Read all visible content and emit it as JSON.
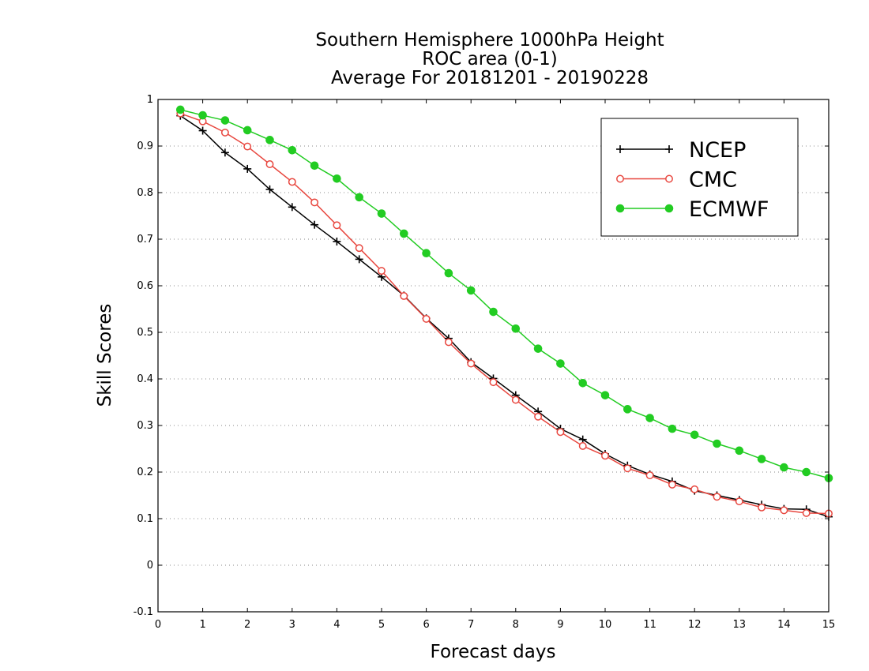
{
  "chart_data": {
    "type": "line",
    "title_lines": [
      "Southern Hemisphere 1000hPa Height",
      "ROC area (0-1)",
      "Average For 20181201 - 20190228"
    ],
    "xlabel": "Forecast days",
    "ylabel": "Skill Scores",
    "xlim": [
      0,
      15
    ],
    "ylim": [
      -0.1,
      1
    ],
    "xticks": [
      "0",
      "1",
      "2",
      "3",
      "4",
      "5",
      "6",
      "7",
      "8",
      "9",
      "10",
      "11",
      "12",
      "13",
      "14",
      "15"
    ],
    "yticks": [
      "-0.1",
      "0",
      "0.1",
      "0.2",
      "0.3",
      "0.4",
      "0.5",
      "0.6",
      "0.7",
      "0.8",
      "0.9",
      "1"
    ],
    "grid": "horizontal dotted",
    "legend_position": "top-right",
    "x": [
      0.5,
      1,
      1.5,
      2,
      2.5,
      3,
      3.5,
      4,
      4.5,
      5,
      5.5,
      6,
      6.5,
      7,
      7.5,
      8,
      8.5,
      9,
      9.5,
      10,
      10.5,
      11,
      11.5,
      12,
      12.5,
      13,
      13.5,
      14,
      14.5,
      15
    ],
    "series": [
      {
        "name": "NCEP",
        "color": "#000000",
        "marker": "plus",
        "values": [
          0.965,
          0.933,
          0.886,
          0.851,
          0.807,
          0.769,
          0.731,
          0.695,
          0.657,
          0.619,
          0.579,
          0.53,
          0.487,
          0.436,
          0.401,
          0.365,
          0.33,
          0.293,
          0.27,
          0.239,
          0.214,
          0.195,
          0.18,
          0.16,
          0.15,
          0.14,
          0.13,
          0.121,
          0.12,
          0.104
        ]
      },
      {
        "name": "CMC",
        "color": "#e8473f",
        "marker": "open-circle",
        "values": [
          0.97,
          0.953,
          0.929,
          0.899,
          0.861,
          0.823,
          0.779,
          0.73,
          0.681,
          0.632,
          0.578,
          0.529,
          0.479,
          0.433,
          0.393,
          0.355,
          0.319,
          0.286,
          0.256,
          0.235,
          0.208,
          0.193,
          0.173,
          0.163,
          0.147,
          0.137,
          0.124,
          0.118,
          0.112,
          0.111
        ]
      },
      {
        "name": "ECMWF",
        "color": "#22cc22",
        "marker": "filled-circle",
        "values": [
          0.978,
          0.966,
          0.955,
          0.934,
          0.913,
          0.891,
          0.858,
          0.83,
          0.79,
          0.755,
          0.712,
          0.67,
          0.627,
          0.59,
          0.544,
          0.508,
          0.465,
          0.433,
          0.391,
          0.365,
          0.335,
          0.316,
          0.293,
          0.28,
          0.261,
          0.246,
          0.228,
          0.21,
          0.2,
          0.187
        ]
      }
    ]
  }
}
